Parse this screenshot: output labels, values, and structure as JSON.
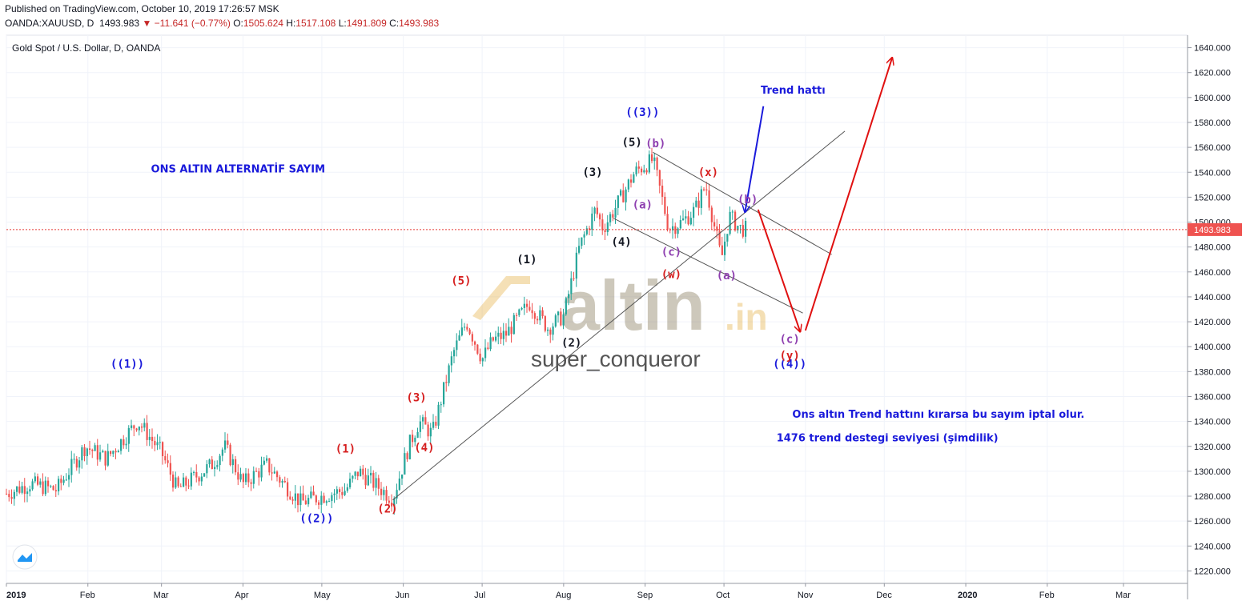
{
  "header": {
    "published": "Published on TradingView.com, October 10, 2019 17:26:57 MSK",
    "symbol": "OANDA:XAUUSD, D",
    "last": "1493.983",
    "change": "−11.641 (−0.77%)",
    "o_label": "O:",
    "o": "1505.624",
    "h_label": "H:",
    "h": "1517.108",
    "l_label": "L:",
    "l": "1491.809",
    "c_label": "C:",
    "c": "1493.983"
  },
  "chart_data": {
    "type": "candlestick",
    "title": "Gold Spot / U.S. Dollar, D, OANDA",
    "last_price": 1493.983,
    "last_price_label": "1493.983",
    "ylim": [
      1210,
      1650
    ],
    "y_ticks": [
      1220,
      1240,
      1260,
      1280,
      1300,
      1320,
      1340,
      1360,
      1380,
      1400,
      1420,
      1440,
      1460,
      1480,
      1500,
      1520,
      1540,
      1560,
      1580,
      1600,
      1620,
      1640
    ],
    "x_tick_labels": [
      "2019",
      "Feb",
      "Mar",
      "Apr",
      "May",
      "Jun",
      "Jul",
      "Aug",
      "Sep",
      "Oct",
      "Nov",
      "Dec",
      "2020",
      "Feb",
      "Mar"
    ],
    "x_tick_dates": [
      "2019-01-01",
      "2019-02-01",
      "2019-03-01",
      "2019-04-01",
      "2019-05-01",
      "2019-06-01",
      "2019-07-01",
      "2019-08-01",
      "2019-09-01",
      "2019-10-01",
      "2019-11-01",
      "2019-12-01",
      "2020-01-01",
      "2020-02-01",
      "2020-03-01"
    ],
    "close_path": [
      [
        "2019-01-01",
        1282
      ],
      [
        "2019-01-10",
        1290
      ],
      [
        "2019-01-20",
        1285
      ],
      [
        "2019-01-31",
        1320
      ],
      [
        "2019-02-08",
        1310
      ],
      [
        "2019-02-20",
        1340
      ],
      [
        "2019-03-01",
        1315
      ],
      [
        "2019-03-07",
        1285
      ],
      [
        "2019-03-20",
        1305
      ],
      [
        "2019-03-25",
        1320
      ],
      [
        "2019-04-01",
        1290
      ],
      [
        "2019-04-10",
        1305
      ],
      [
        "2019-04-23",
        1275
      ],
      [
        "2019-05-01",
        1280
      ],
      [
        "2019-05-10",
        1285
      ],
      [
        "2019-05-15",
        1300
      ],
      [
        "2019-05-28",
        1278
      ],
      [
        "2019-06-03",
        1320
      ],
      [
        "2019-06-07",
        1340
      ],
      [
        "2019-06-12",
        1330
      ],
      [
        "2019-06-20",
        1395
      ],
      [
        "2019-06-25",
        1420
      ],
      [
        "2019-07-01",
        1390
      ],
      [
        "2019-07-05",
        1405
      ],
      [
        "2019-07-10",
        1410
      ],
      [
        "2019-07-19",
        1435
      ],
      [
        "2019-07-26",
        1415
      ],
      [
        "2019-08-01",
        1425
      ],
      [
        "2019-08-07",
        1480
      ],
      [
        "2019-08-13",
        1510
      ],
      [
        "2019-08-16",
        1495
      ],
      [
        "2019-08-23",
        1520
      ],
      [
        "2019-08-28",
        1540
      ],
      [
        "2019-09-04",
        1550
      ],
      [
        "2019-09-10",
        1495
      ],
      [
        "2019-09-15",
        1500
      ],
      [
        "2019-09-20",
        1510
      ],
      [
        "2019-09-24",
        1530
      ],
      [
        "2019-09-30",
        1470
      ],
      [
        "2019-10-03",
        1505
      ],
      [
        "2019-10-07",
        1495
      ],
      [
        "2019-10-10",
        1494
      ]
    ],
    "annotations": [
      {
        "text": "ONS ALTIN  ALTERNATİF SAYIM",
        "date": "2019-02-25",
        "price": 1540,
        "color": "#1a1adb"
      },
      {
        "text": "Trend hattı",
        "date": "2019-10-15",
        "price": 1603,
        "color": "#1a1adb"
      },
      {
        "text": "Ons altın Trend hattını kırarsa bu sayım iptal olur.",
        "date": "2019-10-27",
        "price": 1343,
        "color": "#1a1adb"
      },
      {
        "text": "1476 trend destegi seviyesi (şimdilik)",
        "date": "2019-10-21",
        "price": 1324,
        "color": "#1a1adb"
      }
    ],
    "wave_labels": [
      {
        "text": "((1))",
        "date": "2019-02-16",
        "price": 1383,
        "color": "#1a1adb"
      },
      {
        "text": "((2))",
        "date": "2019-04-29",
        "price": 1259,
        "color": "#1a1adb"
      },
      {
        "text": "((3))",
        "date": "2019-08-31",
        "price": 1585,
        "color": "#1a1adb"
      },
      {
        "text": "((4))",
        "date": "2019-10-26",
        "price": 1383,
        "color": "#1a1adb"
      },
      {
        "text": "(1)",
        "date": "2019-05-10",
        "price": 1315,
        "color": "#d61f1f"
      },
      {
        "text": "(2)",
        "date": "2019-05-26",
        "price": 1267,
        "color": "#d61f1f"
      },
      {
        "text": "(3)",
        "date": "2019-06-06",
        "price": 1356,
        "color": "#d61f1f"
      },
      {
        "text": "(4)",
        "date": "2019-06-09",
        "price": 1316,
        "color": "#d61f1f"
      },
      {
        "text": "(5)",
        "date": "2019-06-23",
        "price": 1450,
        "color": "#d61f1f"
      },
      {
        "text": "(1)",
        "date": "2019-07-18",
        "price": 1467,
        "color": "#131722"
      },
      {
        "text": "(2)",
        "date": "2019-08-04",
        "price": 1400,
        "color": "#131722"
      },
      {
        "text": "(3)",
        "date": "2019-08-12",
        "price": 1537,
        "color": "#131722"
      },
      {
        "text": "(4)",
        "date": "2019-08-23",
        "price": 1481,
        "color": "#131722"
      },
      {
        "text": "(5)",
        "date": "2019-08-27",
        "price": 1561,
        "color": "#131722"
      },
      {
        "text": "(b)",
        "date": "2019-09-05",
        "price": 1560,
        "color": "#8e3fb0"
      },
      {
        "text": "(a)",
        "date": "2019-08-31",
        "price": 1511,
        "color": "#8e3fb0"
      },
      {
        "text": "(c)",
        "date": "2019-09-11",
        "price": 1473,
        "color": "#8e3fb0"
      },
      {
        "text": "(w)",
        "date": "2019-09-11",
        "price": 1455,
        "color": "#d61f1f"
      },
      {
        "text": "(x)",
        "date": "2019-09-25",
        "price": 1537,
        "color": "#d61f1f"
      },
      {
        "text": "(a)",
        "date": "2019-10-02",
        "price": 1454,
        "color": "#8e3fb0"
      },
      {
        "text": "(b)",
        "date": "2019-10-10",
        "price": 1515,
        "color": "#8e3fb0"
      },
      {
        "text": "(c)",
        "date": "2019-10-26",
        "price": 1403,
        "color": "#8e3fb0"
      },
      {
        "text": "(y)",
        "date": "2019-10-26",
        "price": 1390,
        "color": "#d61f1f"
      }
    ],
    "trend_lines": [
      {
        "name": "support",
        "from": [
          "2019-05-28",
          1277
        ],
        "to": [
          "2019-11-16",
          1573
        ],
        "color": "#555555"
      },
      {
        "name": "channel-upper",
        "from": [
          "2019-09-04",
          1556
        ],
        "to": [
          "2019-11-11",
          1474
        ],
        "color": "#555555"
      },
      {
        "name": "channel-lower",
        "from": [
          "2019-08-20",
          1503
        ],
        "to": [
          "2019-10-31",
          1427
        ],
        "color": "#555555"
      }
    ],
    "arrows": [
      {
        "from": [
          "2019-10-16",
          1593
        ],
        "to": [
          "2019-10-09",
          1508
        ],
        "color": "#1a1adb"
      },
      {
        "from": [
          "2019-10-14",
          1510
        ],
        "to": [
          "2019-10-30",
          1412
        ],
        "color": "#e01010"
      },
      {
        "from": [
          "2019-11-01",
          1413
        ],
        "to": [
          "2019-12-04",
          1632
        ],
        "color": "#e01010"
      }
    ]
  }
}
